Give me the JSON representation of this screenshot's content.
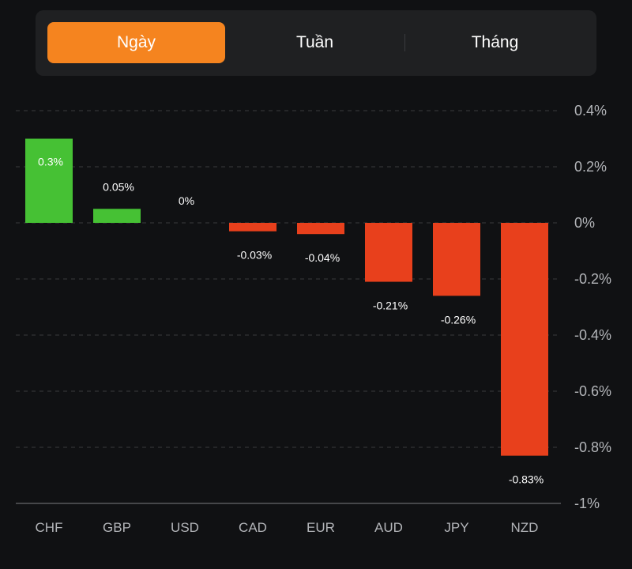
{
  "tabs": [
    {
      "label": "Ngày",
      "active": true
    },
    {
      "label": "Tuần",
      "active": false
    },
    {
      "label": "Tháng",
      "active": false
    }
  ],
  "colors": {
    "positive": "#46c134",
    "negative": "#e8401c",
    "accent": "#f5841f",
    "grid": "#3a3b3e"
  },
  "chart_data": {
    "type": "bar",
    "title": "",
    "xlabel": "",
    "ylabel": "",
    "categories": [
      "CHF",
      "GBP",
      "USD",
      "CAD",
      "EUR",
      "AUD",
      "JPY",
      "NZD"
    ],
    "values": [
      0.3,
      0.05,
      0,
      -0.03,
      -0.04,
      -0.21,
      -0.26,
      -0.83
    ],
    "data_labels": [
      "0.3%",
      "0.05%",
      "0%",
      "-0.03%",
      "-0.04%",
      "-0.21%",
      "-0.26%",
      "-0.83%"
    ],
    "ylim": [
      -1,
      0.4
    ],
    "yticks": [
      0.4,
      0.2,
      0,
      -0.2,
      -0.4,
      -0.6,
      -0.8,
      -1
    ],
    "ytick_labels": [
      "0.4%",
      "0.2%",
      "0%",
      "-0.2%",
      "-0.4%",
      "-0.6%",
      "-0.8%",
      "-1%"
    ],
    "grid": true,
    "y_axis_position": "right",
    "unit": "%"
  }
}
